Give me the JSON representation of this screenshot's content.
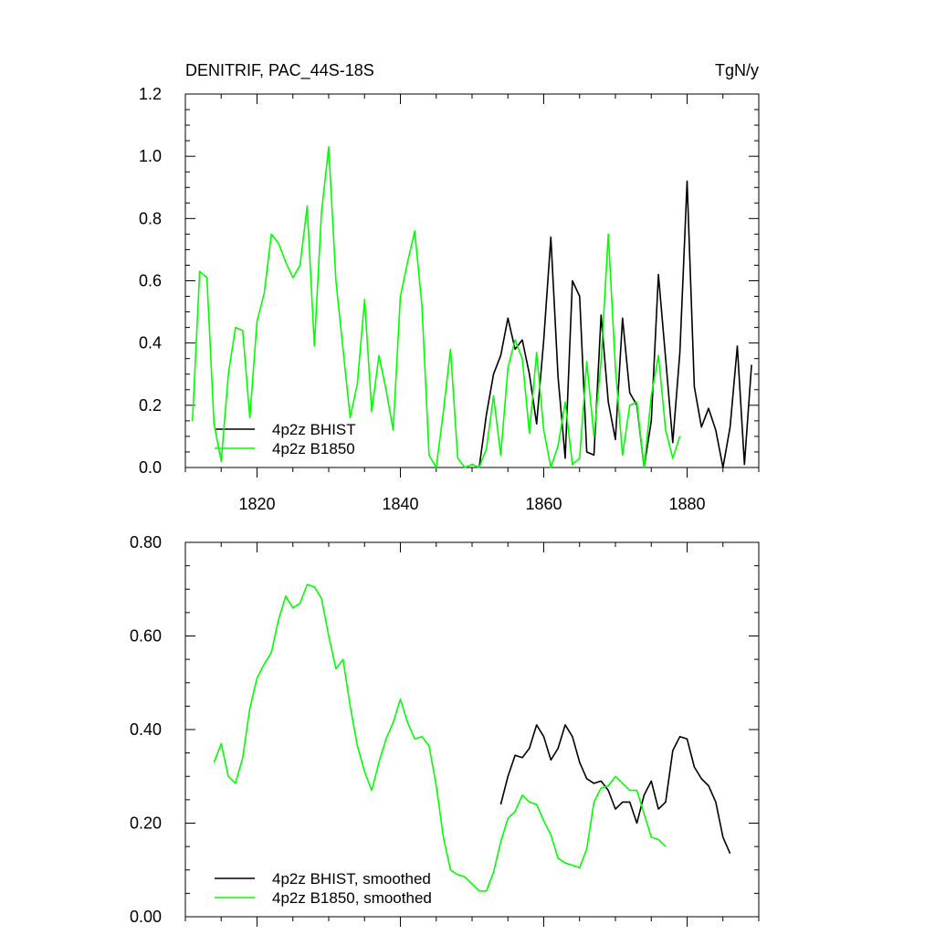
{
  "chart_data": [
    {
      "type": "line",
      "title": "DENITRIF, PAC_44S-18S",
      "units": "TgN/y",
      "xlim": [
        1810,
        1890
      ],
      "ylim": [
        0,
        1.2
      ],
      "xticks": [
        1820,
        1840,
        1860,
        1880
      ],
      "xtick_labels": [
        "1820",
        "1840",
        "1860",
        "1880"
      ],
      "yticks": [
        0,
        0.2,
        0.4,
        0.6,
        0.8,
        1.0,
        1.2
      ],
      "ytick_labels": [
        "0.0",
        "0.2",
        "0.4",
        "0.6",
        "0.8",
        "1.0",
        "1.2"
      ],
      "legend_position": "bottom-left",
      "series": [
        {
          "name": "4p2z BHIST",
          "color": "#000000",
          "x": [
            1851,
            1852,
            1853,
            1854,
            1855,
            1856,
            1857,
            1858,
            1859,
            1860,
            1861,
            1862,
            1863,
            1864,
            1865,
            1866,
            1867,
            1868,
            1869,
            1870,
            1871,
            1872,
            1873,
            1874,
            1875,
            1876,
            1877,
            1878,
            1879,
            1880,
            1881,
            1882,
            1883,
            1884,
            1885,
            1886,
            1887,
            1888,
            1889
          ],
          "y": [
            0.0,
            0.17,
            0.3,
            0.36,
            0.48,
            0.38,
            0.41,
            0.3,
            0.14,
            0.41,
            0.74,
            0.29,
            0.03,
            0.6,
            0.55,
            0.05,
            0.04,
            0.49,
            0.21,
            0.09,
            0.48,
            0.24,
            0.2,
            0.0,
            0.15,
            0.62,
            0.35,
            0.08,
            0.37,
            0.92,
            0.26,
            0.13,
            0.19,
            0.12,
            0.0,
            0.13,
            0.39,
            0.01,
            0.33
          ]
        },
        {
          "name": "4p2z B1850",
          "color": "#00ff00",
          "x": [
            1811,
            1812,
            1813,
            1814,
            1815,
            1816,
            1817,
            1818,
            1819,
            1820,
            1821,
            1822,
            1823,
            1824,
            1825,
            1826,
            1827,
            1828,
            1829,
            1830,
            1831,
            1832,
            1833,
            1834,
            1835,
            1836,
            1837,
            1838,
            1839,
            1840,
            1841,
            1842,
            1843,
            1844,
            1845,
            1846,
            1847,
            1848,
            1849,
            1850,
            1851,
            1852,
            1853,
            1854,
            1855,
            1856,
            1857,
            1858,
            1859,
            1860,
            1861,
            1862,
            1863,
            1864,
            1865,
            1866,
            1867,
            1868,
            1869,
            1870,
            1871,
            1872,
            1873,
            1874,
            1875,
            1876,
            1877,
            1878,
            1879
          ],
          "y": [
            0.15,
            0.63,
            0.61,
            0.14,
            0.02,
            0.3,
            0.45,
            0.44,
            0.16,
            0.47,
            0.56,
            0.75,
            0.72,
            0.66,
            0.61,
            0.65,
            0.84,
            0.39,
            0.82,
            1.03,
            0.6,
            0.38,
            0.16,
            0.27,
            0.54,
            0.18,
            0.36,
            0.25,
            0.12,
            0.55,
            0.66,
            0.76,
            0.52,
            0.04,
            0.0,
            0.18,
            0.38,
            0.03,
            0.0,
            0.01,
            0.0,
            0.06,
            0.23,
            0.04,
            0.32,
            0.41,
            0.35,
            0.11,
            0.37,
            0.12,
            0.0,
            0.07,
            0.21,
            0.01,
            0.03,
            0.34,
            0.1,
            0.34,
            0.75,
            0.32,
            0.04,
            0.2,
            0.21,
            0.0,
            0.23,
            0.36,
            0.12,
            0.03,
            0.1
          ]
        }
      ]
    },
    {
      "type": "line",
      "xlim": [
        1810,
        1890
      ],
      "ylim": [
        0,
        0.8
      ],
      "xticks": [
        1820,
        1840,
        1860,
        1880
      ],
      "yticks": [
        0,
        0.2,
        0.4,
        0.6,
        0.8
      ],
      "ytick_labels": [
        "0.00",
        "0.20",
        "0.40",
        "0.60",
        "0.80"
      ],
      "legend_position": "bottom-left",
      "series": [
        {
          "name": "4p2z BHIST, smoothed",
          "color": "#000000",
          "x": [
            1854,
            1855,
            1856,
            1857,
            1858,
            1859,
            1860,
            1861,
            1862,
            1863,
            1864,
            1865,
            1866,
            1867,
            1868,
            1869,
            1870,
            1871,
            1872,
            1873,
            1874,
            1875,
            1876,
            1877,
            1878,
            1879,
            1880,
            1881,
            1882,
            1883,
            1884,
            1885,
            1886
          ],
          "y": [
            0.24,
            0.3,
            0.345,
            0.34,
            0.36,
            0.41,
            0.385,
            0.335,
            0.36,
            0.41,
            0.385,
            0.33,
            0.295,
            0.285,
            0.29,
            0.27,
            0.23,
            0.245,
            0.245,
            0.2,
            0.26,
            0.29,
            0.23,
            0.245,
            0.355,
            0.385,
            0.38,
            0.32,
            0.295,
            0.28,
            0.245,
            0.17,
            0.135
          ]
        },
        {
          "name": "4p2z B1850, smoothed",
          "color": "#00ff00",
          "x": [
            1814,
            1815,
            1816,
            1817,
            1818,
            1819,
            1820,
            1821,
            1822,
            1823,
            1824,
            1825,
            1826,
            1827,
            1828,
            1829,
            1830,
            1831,
            1832,
            1833,
            1834,
            1835,
            1836,
            1837,
            1838,
            1839,
            1840,
            1841,
            1842,
            1843,
            1844,
            1845,
            1846,
            1847,
            1848,
            1849,
            1850,
            1851,
            1852,
            1853,
            1854,
            1855,
            1856,
            1857,
            1858,
            1859,
            1860,
            1861,
            1862,
            1863,
            1864,
            1865,
            1866,
            1867,
            1868,
            1869,
            1870,
            1871,
            1872,
            1873,
            1874,
            1875,
            1876,
            1877
          ],
          "y": [
            0.33,
            0.37,
            0.3,
            0.285,
            0.34,
            0.445,
            0.51,
            0.54,
            0.565,
            0.635,
            0.685,
            0.66,
            0.67,
            0.71,
            0.705,
            0.68,
            0.6,
            0.53,
            0.55,
            0.45,
            0.365,
            0.31,
            0.27,
            0.33,
            0.38,
            0.415,
            0.465,
            0.415,
            0.38,
            0.385,
            0.365,
            0.28,
            0.17,
            0.1,
            0.09,
            0.085,
            0.07,
            0.055,
            0.055,
            0.095,
            0.16,
            0.21,
            0.225,
            0.26,
            0.245,
            0.24,
            0.205,
            0.175,
            0.125,
            0.115,
            0.11,
            0.105,
            0.145,
            0.245,
            0.275,
            0.28,
            0.3,
            0.285,
            0.27,
            0.27,
            0.22,
            0.17,
            0.165,
            0.15
          ]
        }
      ]
    }
  ]
}
